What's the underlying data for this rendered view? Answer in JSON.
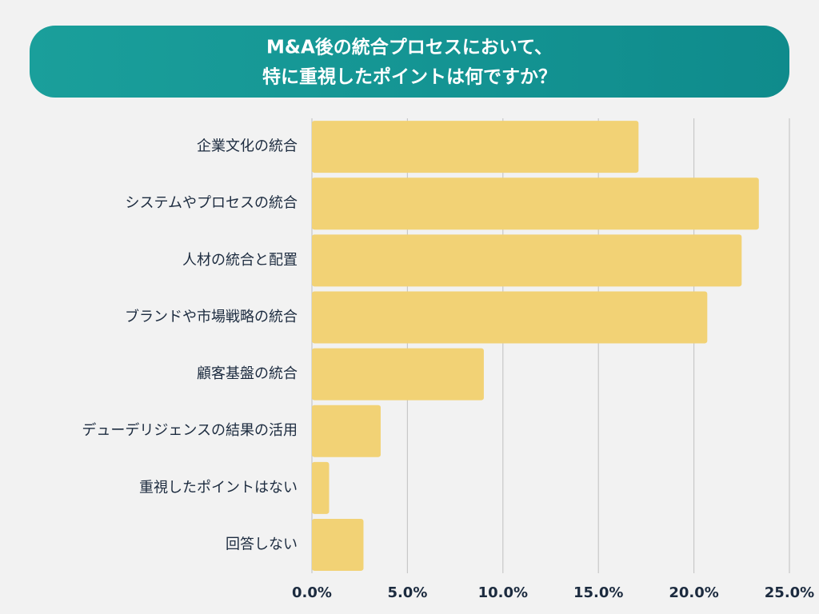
{
  "chart_data": {
    "type": "bar",
    "orientation": "horizontal",
    "title": [
      "M&A後の統合プロセスにおいて、",
      "特に重視したポイントは何ですか？"
    ],
    "categories": [
      "企業文化の統合",
      "システムやプロセスの統合",
      "人材の統合と配置",
      "ブランドや市場戦略の統合",
      "顧客基盤の統合",
      "デューデリジェンスの結果の活用",
      "重視したポイントはない",
      "回答しない"
    ],
    "values": [
      17.1,
      23.4,
      22.5,
      20.7,
      9.0,
      3.6,
      0.9,
      2.7
    ],
    "color": "#f2d275",
    "xlim": [
      0,
      25
    ],
    "xticks": [
      {
        "value": 0,
        "label": "0.0%"
      },
      {
        "value": 5,
        "label": "5.0%"
      },
      {
        "value": 10,
        "label": "10.0%"
      },
      {
        "value": 15,
        "label": "15.0%"
      },
      {
        "value": 20,
        "label": "20.0%"
      },
      {
        "value": 25,
        "label": "25.0%"
      }
    ],
    "grid": true
  }
}
